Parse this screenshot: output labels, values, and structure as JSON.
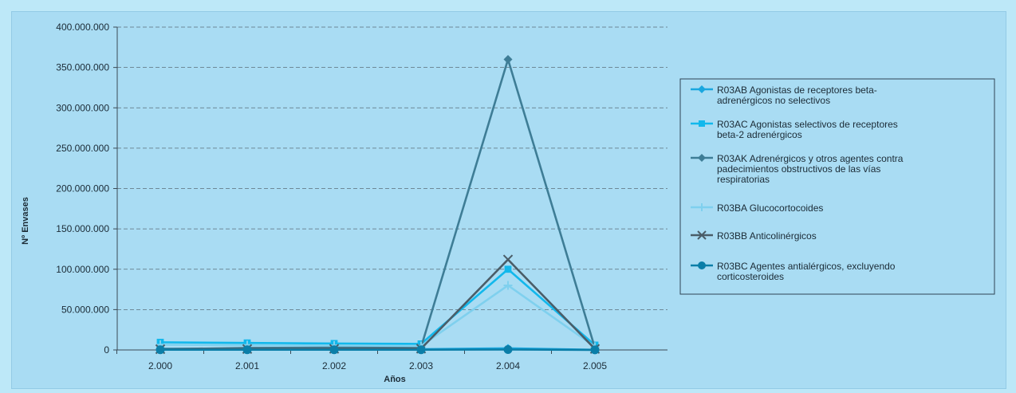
{
  "chart_data": {
    "type": "line",
    "title": "",
    "xlabel": "Años",
    "ylabel": "Nº Envases",
    "categories": [
      "2.000",
      "2.001",
      "2.002",
      "2.003",
      "2.004",
      "2.005"
    ],
    "yticks": [
      "0",
      "50.000.000",
      "100.000.000",
      "150.000.000",
      "200.000.000",
      "250.000.000",
      "300.000.000",
      "350.000.000",
      "400.000.000"
    ],
    "ylim": [
      0,
      400000000
    ],
    "grid": "horizontal dashed",
    "legend_position": "right",
    "series": [
      {
        "name_lines": [
          "R03AB Agonistas de receptores beta-",
          "adrenérgicos no selectivos"
        ],
        "color": "#1aa7df",
        "marker": "diamond",
        "values": [
          1500000,
          1300000,
          1100000,
          1000000,
          2000000,
          200000
        ]
      },
      {
        "name_lines": [
          "R03AC Agonistas selectivos de receptores",
          "beta-2 adrenérgicos"
        ],
        "color": "#12b8ec",
        "marker": "square",
        "values": [
          9500000,
          8700000,
          8000000,
          7500000,
          100000000,
          6000000
        ]
      },
      {
        "name_lines": [
          "R03AK Adrenérgicos y otros agentes contra",
          "padecimientos obstructivos de las vías",
          "respiratorias"
        ],
        "color": "#3e7d96",
        "marker": "diamond",
        "values": [
          1000000,
          2500000,
          3000000,
          3500000,
          360000000,
          2500000
        ]
      },
      {
        "name_lines": [
          "R03BA Glucocortocoides"
        ],
        "color": "#7fd0ee",
        "marker": "cross",
        "values": [
          6500000,
          6000000,
          5500000,
          5000000,
          80000000,
          4000000
        ]
      },
      {
        "name_lines": [
          "R03BB Anticolinérgicos"
        ],
        "color": "#4a5d68",
        "marker": "x",
        "values": [
          1000000,
          1200000,
          1400000,
          1600000,
          112000000,
          1300000
        ]
      },
      {
        "name_lines": [
          "R03BC Agentes antialérgicos, excluyendo",
          "corticosteroides"
        ],
        "color": "#0b7ea8",
        "marker": "circle",
        "values": [
          300000,
          300000,
          300000,
          300000,
          500000,
          100000
        ]
      }
    ]
  }
}
